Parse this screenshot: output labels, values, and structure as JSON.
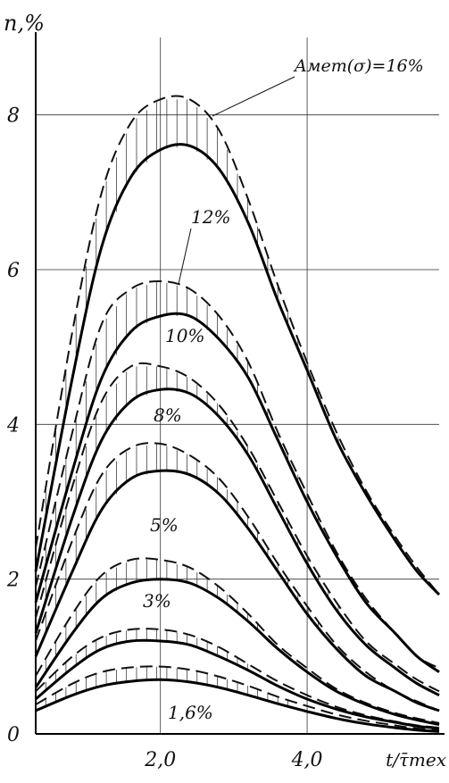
{
  "chart_data": {
    "type": "line",
    "ylabel": "n,%",
    "xlabel": "t/τ̄тех",
    "x_ticks": [
      {
        "value": 2.0,
        "label": "2,0"
      },
      {
        "value": 4.0,
        "label": "4,0"
      }
    ],
    "y_ticks": [
      {
        "value": 0,
        "label": "0"
      },
      {
        "value": 2,
        "label": "2"
      },
      {
        "value": 4,
        "label": "4"
      },
      {
        "value": 6,
        "label": "6"
      },
      {
        "value": 8,
        "label": "8"
      }
    ],
    "xlim": [
      0.3,
      5.8
    ],
    "ylim": [
      0,
      9
    ],
    "grid": true,
    "series": [
      {
        "name": "Aмет(σ)=16%",
        "solid": [
          [
            0.3,
            2.1
          ],
          [
            0.8,
            4.6
          ],
          [
            1.2,
            6.3
          ],
          [
            1.6,
            7.2
          ],
          [
            2.0,
            7.55
          ],
          [
            2.4,
            7.6
          ],
          [
            2.8,
            7.3
          ],
          [
            3.2,
            6.6
          ],
          [
            3.6,
            5.6
          ],
          [
            4.0,
            4.7
          ],
          [
            4.4,
            3.8
          ],
          [
            4.8,
            3.1
          ],
          [
            5.2,
            2.5
          ],
          [
            5.5,
            2.1
          ],
          [
            5.8,
            1.8
          ]
        ],
        "dashed": [
          [
            0.3,
            2.4
          ],
          [
            0.8,
            5.2
          ],
          [
            1.2,
            7.0
          ],
          [
            1.6,
            7.9
          ],
          [
            2.0,
            8.2
          ],
          [
            2.4,
            8.2
          ],
          [
            2.8,
            7.8
          ],
          [
            3.2,
            6.9
          ],
          [
            3.6,
            5.8
          ],
          [
            4.0,
            4.8
          ],
          [
            4.4,
            3.9
          ],
          [
            4.8,
            3.15
          ],
          [
            5.2,
            2.55
          ],
          [
            5.5,
            2.15
          ],
          [
            5.8,
            1.8
          ]
        ]
      },
      {
        "name": "12%",
        "solid": [
          [
            0.3,
            1.7
          ],
          [
            0.8,
            3.4
          ],
          [
            1.2,
            4.6
          ],
          [
            1.6,
            5.2
          ],
          [
            2.0,
            5.4
          ],
          [
            2.4,
            5.4
          ],
          [
            2.8,
            5.1
          ],
          [
            3.2,
            4.6
          ],
          [
            3.6,
            3.8
          ],
          [
            4.0,
            3.0
          ],
          [
            4.4,
            2.3
          ],
          [
            4.8,
            1.7
          ],
          [
            5.2,
            1.3
          ],
          [
            5.5,
            1.0
          ],
          [
            5.8,
            0.8
          ]
        ],
        "dashed": [
          [
            0.3,
            1.9
          ],
          [
            0.8,
            3.9
          ],
          [
            1.2,
            5.3
          ],
          [
            1.6,
            5.75
          ],
          [
            2.0,
            5.85
          ],
          [
            2.4,
            5.75
          ],
          [
            2.8,
            5.4
          ],
          [
            3.2,
            4.8
          ],
          [
            3.6,
            3.9
          ],
          [
            4.0,
            3.1
          ],
          [
            4.4,
            2.35
          ],
          [
            4.8,
            1.75
          ],
          [
            5.2,
            1.3
          ],
          [
            5.5,
            1.0
          ],
          [
            5.8,
            0.85
          ]
        ]
      },
      {
        "name": "10%",
        "solid": [
          [
            0.3,
            1.3
          ],
          [
            0.8,
            2.8
          ],
          [
            1.2,
            3.8
          ],
          [
            1.6,
            4.3
          ],
          [
            2.0,
            4.45
          ],
          [
            2.4,
            4.4
          ],
          [
            2.8,
            4.1
          ],
          [
            3.2,
            3.6
          ],
          [
            3.6,
            2.9
          ],
          [
            4.0,
            2.2
          ],
          [
            4.4,
            1.6
          ],
          [
            4.8,
            1.15
          ],
          [
            5.2,
            0.85
          ],
          [
            5.5,
            0.65
          ],
          [
            5.8,
            0.5
          ]
        ],
        "dashed": [
          [
            0.3,
            1.5
          ],
          [
            0.8,
            3.2
          ],
          [
            1.2,
            4.3
          ],
          [
            1.6,
            4.75
          ],
          [
            2.0,
            4.75
          ],
          [
            2.4,
            4.6
          ],
          [
            2.8,
            4.25
          ],
          [
            3.2,
            3.7
          ],
          [
            3.6,
            3.0
          ],
          [
            4.0,
            2.3
          ],
          [
            4.4,
            1.7
          ],
          [
            4.8,
            1.2
          ],
          [
            5.2,
            0.9
          ],
          [
            5.5,
            0.7
          ],
          [
            5.8,
            0.55
          ]
        ]
      },
      {
        "name": "8%",
        "solid": [
          [
            0.3,
            1.0
          ],
          [
            0.8,
            2.1
          ],
          [
            1.2,
            2.9
          ],
          [
            1.6,
            3.3
          ],
          [
            2.0,
            3.4
          ],
          [
            2.4,
            3.35
          ],
          [
            2.8,
            3.1
          ],
          [
            3.2,
            2.65
          ],
          [
            3.6,
            2.1
          ],
          [
            4.0,
            1.55
          ],
          [
            4.4,
            1.1
          ],
          [
            4.8,
            0.75
          ],
          [
            5.2,
            0.55
          ],
          [
            5.5,
            0.4
          ],
          [
            5.8,
            0.3
          ]
        ],
        "dashed": [
          [
            0.3,
            1.2
          ],
          [
            0.8,
            2.5
          ],
          [
            1.2,
            3.35
          ],
          [
            1.6,
            3.7
          ],
          [
            2.0,
            3.75
          ],
          [
            2.4,
            3.6
          ],
          [
            2.8,
            3.3
          ],
          [
            3.2,
            2.8
          ],
          [
            3.6,
            2.2
          ],
          [
            4.0,
            1.65
          ],
          [
            4.4,
            1.15
          ],
          [
            4.8,
            0.8
          ],
          [
            5.2,
            0.55
          ],
          [
            5.5,
            0.42
          ],
          [
            5.8,
            0.3
          ]
        ]
      },
      {
        "name": "5%",
        "solid": [
          [
            0.3,
            0.6
          ],
          [
            0.8,
            1.3
          ],
          [
            1.2,
            1.75
          ],
          [
            1.6,
            1.95
          ],
          [
            2.0,
            2.0
          ],
          [
            2.4,
            1.95
          ],
          [
            2.8,
            1.75
          ],
          [
            3.2,
            1.45
          ],
          [
            3.6,
            1.1
          ],
          [
            4.0,
            0.8
          ],
          [
            4.4,
            0.55
          ],
          [
            4.8,
            0.38
          ],
          [
            5.2,
            0.25
          ],
          [
            5.5,
            0.18
          ],
          [
            5.8,
            0.12
          ]
        ],
        "dashed": [
          [
            0.3,
            0.75
          ],
          [
            0.8,
            1.55
          ],
          [
            1.2,
            2.05
          ],
          [
            1.6,
            2.25
          ],
          [
            2.0,
            2.25
          ],
          [
            2.4,
            2.15
          ],
          [
            2.8,
            1.9
          ],
          [
            3.2,
            1.55
          ],
          [
            3.6,
            1.15
          ],
          [
            4.0,
            0.85
          ],
          [
            4.4,
            0.58
          ],
          [
            4.8,
            0.4
          ],
          [
            5.2,
            0.27
          ],
          [
            5.5,
            0.2
          ],
          [
            5.8,
            0.14
          ]
        ]
      },
      {
        "name": "3%",
        "solid": [
          [
            0.3,
            0.45
          ],
          [
            0.8,
            0.85
          ],
          [
            1.2,
            1.1
          ],
          [
            1.6,
            1.2
          ],
          [
            2.0,
            1.2
          ],
          [
            2.4,
            1.15
          ],
          [
            2.8,
            1.0
          ],
          [
            3.2,
            0.82
          ],
          [
            3.6,
            0.62
          ],
          [
            4.0,
            0.45
          ],
          [
            4.4,
            0.32
          ],
          [
            4.8,
            0.22
          ],
          [
            5.2,
            0.15
          ],
          [
            5.5,
            0.1
          ],
          [
            5.8,
            0.07
          ]
        ],
        "dashed": [
          [
            0.3,
            0.55
          ],
          [
            0.8,
            1.0
          ],
          [
            1.2,
            1.25
          ],
          [
            1.6,
            1.35
          ],
          [
            2.0,
            1.35
          ],
          [
            2.4,
            1.28
          ],
          [
            2.8,
            1.12
          ],
          [
            3.2,
            0.9
          ],
          [
            3.6,
            0.68
          ],
          [
            4.0,
            0.5
          ],
          [
            4.4,
            0.35
          ],
          [
            4.8,
            0.24
          ],
          [
            5.2,
            0.16
          ],
          [
            5.5,
            0.11
          ],
          [
            5.8,
            0.08
          ]
        ]
      },
      {
        "name": "1,6%",
        "solid": [
          [
            0.3,
            0.3
          ],
          [
            0.8,
            0.5
          ],
          [
            1.2,
            0.62
          ],
          [
            1.6,
            0.68
          ],
          [
            2.0,
            0.7
          ],
          [
            2.4,
            0.67
          ],
          [
            2.8,
            0.6
          ],
          [
            3.2,
            0.5
          ],
          [
            3.6,
            0.39
          ],
          [
            4.0,
            0.29
          ],
          [
            4.4,
            0.2
          ],
          [
            4.8,
            0.13
          ],
          [
            5.2,
            0.08
          ],
          [
            5.5,
            0.05
          ],
          [
            5.8,
            0.03
          ]
        ],
        "dashed": [
          [
            0.3,
            0.38
          ],
          [
            0.8,
            0.65
          ],
          [
            1.2,
            0.8
          ],
          [
            1.6,
            0.86
          ],
          [
            2.0,
            0.87
          ],
          [
            2.4,
            0.83
          ],
          [
            2.8,
            0.74
          ],
          [
            3.2,
            0.62
          ],
          [
            3.6,
            0.48
          ],
          [
            4.0,
            0.36
          ],
          [
            4.4,
            0.25
          ],
          [
            4.8,
            0.17
          ],
          [
            5.2,
            0.11
          ],
          [
            5.5,
            0.07
          ],
          [
            5.8,
            0.05
          ]
        ]
      }
    ]
  }
}
